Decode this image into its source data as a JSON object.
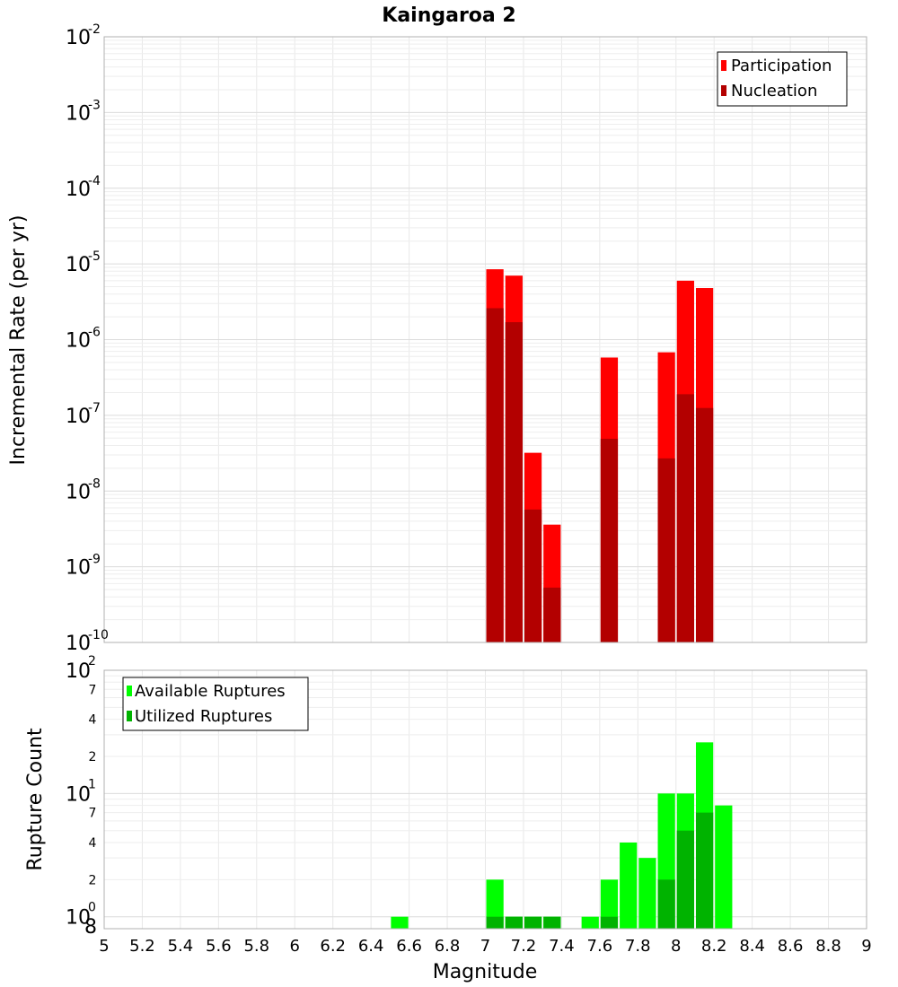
{
  "chart_data": [
    {
      "type": "bar",
      "title": "Kaingaroa 2",
      "xlabel": "Magnitude",
      "ylabel": "Incremental Rate (per yr)",
      "xlim": [
        5,
        9
      ],
      "ylim": [
        1e-10,
        0.01
      ],
      "yscale": "log",
      "bin_width": 0.1,
      "grid": true,
      "legend_position": "top-right",
      "x_ticks": [
        "5",
        "5.2",
        "5.4",
        "5.6",
        "5.8",
        "6",
        "6.2",
        "6.4",
        "6.6",
        "6.8",
        "7",
        "7.2",
        "7.4",
        "7.6",
        "7.8",
        "8",
        "8.2",
        "8.4",
        "8.6",
        "8.8",
        "9"
      ],
      "y_ticks": [
        {
          "value": 0.01,
          "base": "10",
          "exp": "-2"
        },
        {
          "value": 0.001,
          "base": "10",
          "exp": "-3"
        },
        {
          "value": 0.0001,
          "base": "10",
          "exp": "-4"
        },
        {
          "value": 1e-05,
          "base": "10",
          "exp": "-5"
        },
        {
          "value": 1e-06,
          "base": "10",
          "exp": "-6"
        },
        {
          "value": 1e-07,
          "base": "10",
          "exp": "-7"
        },
        {
          "value": 1e-08,
          "base": "10",
          "exp": "-8"
        },
        {
          "value": 1e-09,
          "base": "10",
          "exp": "-9"
        },
        {
          "value": 1e-10,
          "base": "10",
          "exp": "-10"
        }
      ],
      "series": [
        {
          "name": "Participation",
          "color": "#ff0000",
          "x": [
            7.05,
            7.15,
            7.25,
            7.35,
            7.65,
            7.95,
            8.05,
            8.15
          ],
          "values": [
            8.5e-06,
            7e-06,
            3.2e-08,
            3.6e-09,
            5.8e-07,
            6.8e-07,
            6e-06,
            4.8e-06
          ]
        },
        {
          "name": "Nucleation",
          "color": "#b30000",
          "x": [
            7.05,
            7.15,
            7.25,
            7.35,
            7.65,
            7.95,
            8.05,
            8.15
          ],
          "values": [
            2.6e-06,
            1.7e-06,
            5.7e-09,
            5.3e-10,
            4.9e-08,
            2.7e-08,
            1.9e-07,
            1.25e-07
          ]
        }
      ]
    },
    {
      "type": "bar",
      "title": "",
      "xlabel": "Magnitude",
      "ylabel": "Rupture Count",
      "xlim": [
        5,
        9
      ],
      "ylim": [
        0.8,
        100
      ],
      "yscale": "log",
      "bin_width": 0.1,
      "grid": true,
      "legend_position": "top-left",
      "x_ticks": [
        "5",
        "5.2",
        "5.4",
        "5.6",
        "5.8",
        "6",
        "6.2",
        "6.4",
        "6.6",
        "6.8",
        "7",
        "7.2",
        "7.4",
        "7.6",
        "7.8",
        "8",
        "8.2",
        "8.4",
        "8.6",
        "8.8",
        "9"
      ],
      "y_major_ticks": [
        {
          "value": 100,
          "base": "10",
          "exp": "2"
        },
        {
          "value": 10,
          "base": "10",
          "exp": "1"
        },
        {
          "value": 1,
          "base": "10",
          "exp": "0"
        }
      ],
      "y_minor_ticks": [
        {
          "value": 70,
          "label": "7"
        },
        {
          "value": 40,
          "label": "4"
        },
        {
          "value": 20,
          "label": "2"
        },
        {
          "value": 7,
          "label": "7"
        },
        {
          "value": 4,
          "label": "4"
        },
        {
          "value": 2,
          "label": "2"
        },
        {
          "value": 0.8,
          "label": "8"
        }
      ],
      "series": [
        {
          "name": "Available Ruptures",
          "color": "#00ff00",
          "x": [
            6.55,
            7.05,
            7.15,
            7.25,
            7.35,
            7.55,
            7.65,
            7.75,
            7.85,
            7.95,
            8.05,
            8.15,
            8.25
          ],
          "values": [
            1,
            2,
            1,
            1,
            1,
            1,
            2,
            4,
            3,
            10,
            10,
            26,
            8
          ]
        },
        {
          "name": "Utilized Ruptures",
          "color": "#00b300",
          "x": [
            7.05,
            7.15,
            7.25,
            7.35,
            7.65,
            7.95,
            8.05,
            8.15
          ],
          "values": [
            1,
            1,
            1,
            1,
            1,
            2,
            5,
            7
          ]
        }
      ]
    }
  ]
}
